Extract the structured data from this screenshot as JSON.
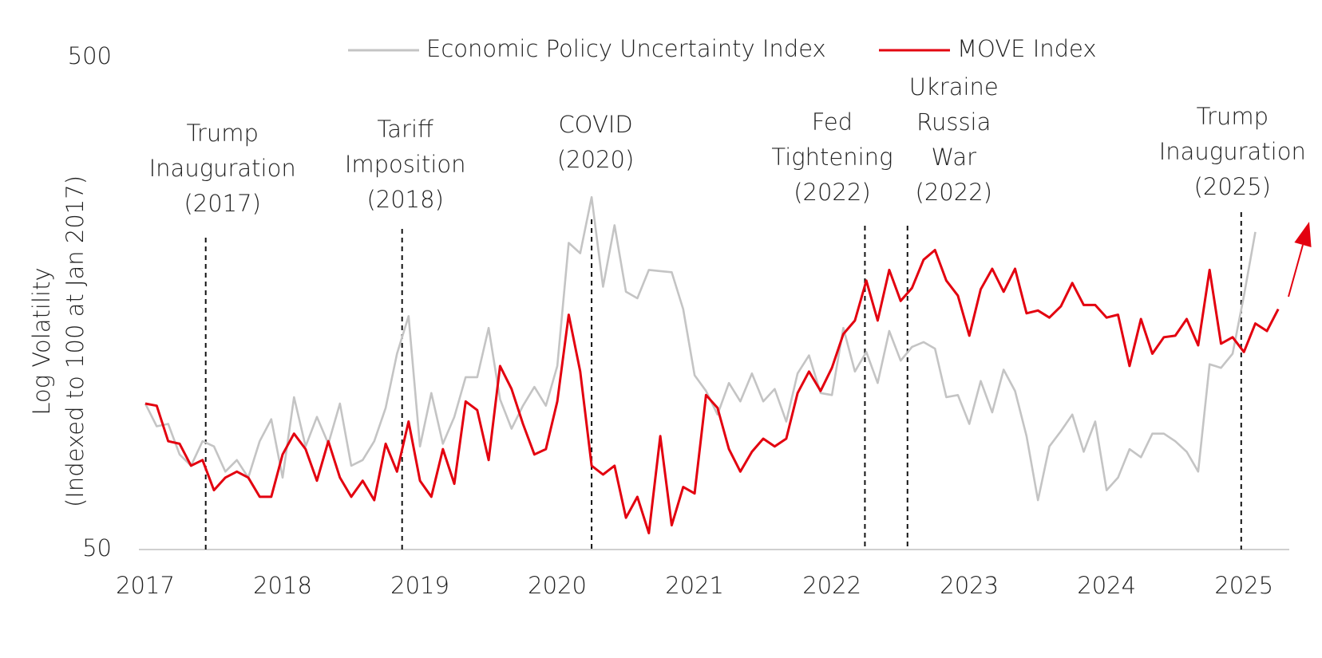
{
  "chart_data": {
    "type": "line",
    "ylabel": [
      "Log Volatility",
      "(Indexed to 100 at Jan 2017)"
    ],
    "log_scale": true,
    "grid": false,
    "legend": "top",
    "xlim": [
      2017,
      2025.33
    ],
    "xticks": [
      2017,
      2018,
      2019,
      2020,
      2021,
      2022,
      2023,
      2024,
      2025
    ],
    "ylim": [
      50,
      500
    ],
    "yticks": [
      50,
      500
    ],
    "x": [
      2017,
      2017.083,
      2017.167,
      2017.25,
      2017.333,
      2017.417,
      2017.5,
      2017.583,
      2017.667,
      2017.75,
      2017.833,
      2017.917,
      2018,
      2018.083,
      2018.167,
      2018.25,
      2018.333,
      2018.417,
      2018.5,
      2018.583,
      2018.667,
      2018.75,
      2018.833,
      2018.917,
      2019,
      2019.083,
      2019.167,
      2019.25,
      2019.333,
      2019.417,
      2019.5,
      2019.583,
      2019.667,
      2019.75,
      2019.833,
      2019.917,
      2020,
      2020.083,
      2020.167,
      2020.25,
      2020.333,
      2020.417,
      2020.5,
      2020.583,
      2020.667,
      2020.75,
      2020.833,
      2020.917,
      2021,
      2021.083,
      2021.167,
      2021.25,
      2021.333,
      2021.417,
      2021.5,
      2021.583,
      2021.667,
      2021.75,
      2021.833,
      2021.917,
      2022,
      2022.083,
      2022.167,
      2022.25,
      2022.333,
      2022.417,
      2022.5,
      2022.583,
      2022.667,
      2022.75,
      2022.833,
      2022.917,
      2023,
      2023.083,
      2023.167,
      2023.25,
      2023.333,
      2023.417,
      2023.5,
      2023.583,
      2023.667,
      2023.75,
      2023.833,
      2023.917,
      2024,
      2024.083,
      2024.167,
      2024.25,
      2024.333,
      2024.417,
      2024.5,
      2024.583,
      2024.667,
      2024.75,
      2024.833,
      2024.917,
      2025,
      2025.083,
      2025.167,
      2025.25
    ],
    "series": [
      {
        "name": "Economic Policy Uncertainty Index",
        "color": "#c4c4c4",
        "values": [
          99,
          89,
          90,
          78,
          74,
          83,
          81,
          72,
          76,
          70,
          83,
          92,
          70,
          102,
          81,
          93,
          82,
          99,
          74,
          76,
          83,
          97,
          125,
          149,
          81,
          104,
          82,
          93,
          112,
          112,
          141,
          101,
          88,
          98,
          107,
          98,
          118,
          210,
          200,
          260,
          171,
          228,
          167,
          162,
          185,
          184,
          183,
          154,
          113,
          105,
          94,
          109,
          100,
          114,
          100,
          106,
          91,
          114,
          124,
          104,
          103,
          141,
          115,
          126,
          109,
          139,
          121,
          129,
          132,
          128,
          102,
          103,
          90,
          110,
          95,
          116,
          105,
          85,
          63,
          81,
          87,
          94,
          79,
          91,
          66,
          70,
          80,
          77,
          86,
          86,
          83,
          79,
          72,
          119,
          117,
          125,
          164,
          221,
          null,
          null
        ]
      },
      {
        "name": "MOVE Index",
        "color": "#e3000f",
        "values": [
          99,
          98,
          83,
          82,
          74,
          76,
          66,
          70,
          72,
          70,
          64,
          64,
          78,
          86,
          80,
          69,
          83,
          70,
          64,
          69,
          63,
          82,
          72,
          91,
          69,
          64,
          80,
          68,
          100,
          96,
          76,
          118,
          106,
          90,
          78,
          80,
          100,
          150,
          115,
          74,
          71,
          74,
          58,
          64,
          54,
          85,
          56,
          67,
          65,
          103,
          97,
          80,
          72,
          79,
          84,
          81,
          84,
          104,
          115,
          105,
          117,
          137,
          146,
          176,
          146,
          185,
          160,
          170,
          194,
          203,
          176,
          164,
          136,
          169,
          186,
          167,
          186,
          151,
          153,
          148,
          156,
          174,
          157,
          157,
          148,
          150,
          118,
          147,
          125,
          135,
          136,
          147,
          130,
          185,
          131,
          135,
          126,
          144,
          139,
          154
        ]
      }
    ],
    "annotations": [
      {
        "text": [
          "Trump",
          "Inauguration",
          "(2017)"
        ],
        "x": 2017.44
      },
      {
        "text": [
          "Tariff",
          "Imposition",
          "(2018)"
        ],
        "x": 2018.87
      },
      {
        "text": [
          "COVID",
          "(2020)"
        ],
        "x": 2020.25
      },
      {
        "text": [
          "Fed",
          "Tightening",
          "(2022)"
        ],
        "x": 2022.24
      },
      {
        "text": [
          "Ukraine",
          "Russia",
          "War",
          "(2022)"
        ],
        "x": 2022.55
      },
      {
        "text": [
          "Trump",
          "Inauguration",
          "(2025)"
        ],
        "x": 2024.98
      }
    ]
  }
}
